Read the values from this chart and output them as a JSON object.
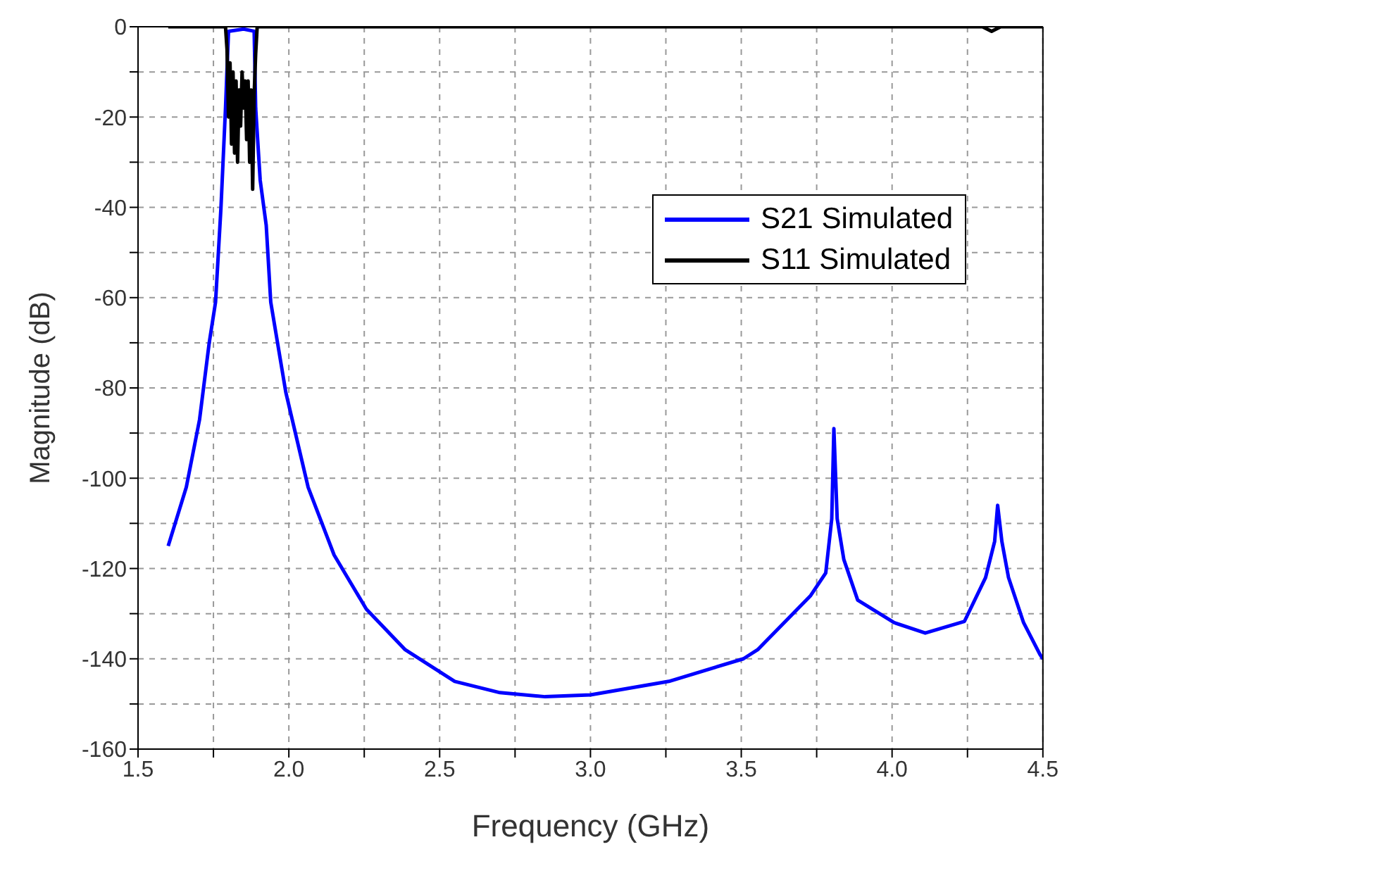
{
  "chart_data": {
    "type": "line",
    "xlabel": "Frequency (GHz)",
    "ylabel": "Magnitude (dB)",
    "xlim": [
      1.5,
      4.5
    ],
    "xticks": [
      1.5,
      {
        "value": 1.75,
        "label": null
      },
      {
        "value": 2,
        "label": "2.0"
      },
      {
        "value": 2.25,
        "label": null
      },
      2.5,
      {
        "value": 2.75,
        "label": null
      },
      {
        "value": 3,
        "label": "3.0"
      },
      {
        "value": 3.25,
        "label": null
      },
      3.5,
      {
        "value": 3.75,
        "label": null
      },
      {
        "value": 4,
        "label": "4.0"
      },
      {
        "value": 4.25,
        "label": null
      },
      4.5
    ],
    "ylim": [
      -160,
      0
    ],
    "yticks": [
      0,
      {
        "value": -10,
        "label": null
      },
      -20,
      {
        "value": -30,
        "label": null
      },
      -40,
      {
        "value": -50,
        "label": null
      },
      -60,
      {
        "value": -70,
        "label": null
      },
      -80,
      {
        "value": -90,
        "label": null
      },
      -100,
      {
        "value": -110,
        "label": null
      },
      -120,
      {
        "value": -130,
        "label": null
      },
      -140,
      {
        "value": -150,
        "label": null
      },
      -160
    ],
    "grid": true,
    "legend": "top right",
    "line_style": "solid",
    "marker": "none",
    "series": [
      {
        "name": "S21 Simulated",
        "color": "#0000ff",
        "x": [
          1.6,
          1.66,
          1.704,
          1.736,
          1.757,
          1.775,
          1.79,
          1.8,
          1.85,
          1.885,
          1.89,
          1.905,
          1.925,
          1.94,
          1.99,
          2.064,
          2.15,
          2.257,
          2.386,
          2.55,
          2.7,
          2.85,
          3.0,
          3.26,
          3.507,
          3.554,
          3.73,
          3.78,
          3.8,
          3.807,
          3.818,
          3.84,
          3.886,
          4.007,
          4.11,
          4.24,
          4.31,
          4.34,
          4.35,
          4.364,
          4.386,
          4.436,
          4.49,
          4.5
        ],
        "values": [
          -115,
          -102,
          -87,
          -70,
          -61,
          -40,
          -18,
          -1,
          -0.5,
          -1,
          -18,
          -34,
          -44,
          -61,
          -81,
          -102,
          -117,
          -129,
          -138,
          -145,
          -147.5,
          -148.4,
          -148,
          -145,
          -140,
          -138,
          -126,
          -121,
          -109,
          -89,
          -109,
          -118,
          -127,
          -132,
          -134.3,
          -131.7,
          -122,
          -114,
          -106,
          -114,
          -122,
          -132,
          -139,
          -140
        ]
      },
      {
        "name": "S11 Simulated",
        "color": "#000000",
        "x": [
          1.6,
          1.79,
          1.795,
          1.8,
          1.805,
          1.81,
          1.815,
          1.82,
          1.825,
          1.83,
          1.835,
          1.84,
          1.845,
          1.85,
          1.855,
          1.86,
          1.865,
          1.87,
          1.875,
          1.88,
          1.885,
          1.89,
          1.895,
          4.3,
          4.33,
          4.36,
          4.5
        ],
        "values": [
          0,
          0,
          -5,
          -20,
          -8,
          -26,
          -10,
          -28,
          -12,
          -30,
          -14,
          -22,
          -10,
          -18,
          -12,
          -25,
          -12,
          -30,
          -14,
          -36,
          -15,
          -6,
          0,
          0,
          -1,
          0,
          0
        ]
      }
    ]
  }
}
